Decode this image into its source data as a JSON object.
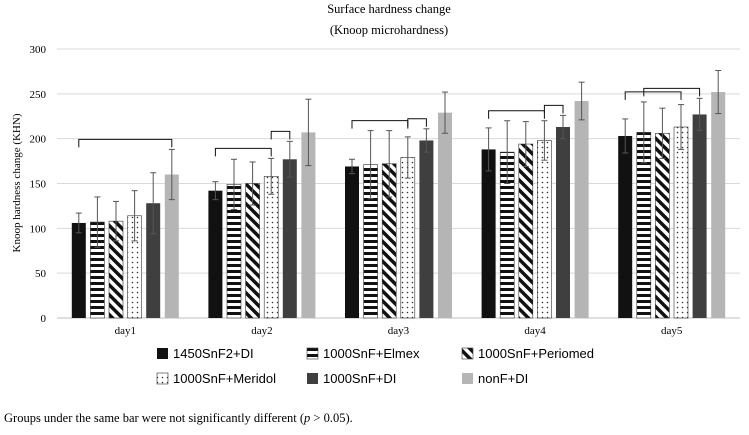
{
  "chart_data": {
    "type": "bar",
    "title": "Surface hardness change",
    "subtitle": "(Knoop microhardness)",
    "ylabel": "Knoop hardness change (KHN)",
    "xlabel": "",
    "ylim": [
      0,
      300
    ],
    "yticks": [
      0,
      50,
      100,
      150,
      200,
      250,
      300
    ],
    "grid": true,
    "legend_position": "bottom",
    "categories": [
      "day1",
      "day2",
      "day3",
      "day4",
      "day5"
    ],
    "series": [
      {
        "name": "1450SnF2+DI",
        "pattern": "solid-black",
        "values": [
          106,
          142,
          169,
          188,
          203
        ],
        "errors": [
          11,
          10,
          8,
          24,
          19
        ]
      },
      {
        "name": "1000SnF+Elmex",
        "pattern": "horizontal-stripes",
        "values": [
          107,
          149,
          171,
          185,
          207
        ],
        "errors": [
          28,
          28,
          38,
          35,
          34
        ]
      },
      {
        "name": "1000SnF+Periomed",
        "pattern": "diagonal-stripes",
        "values": [
          108,
          150,
          172,
          194,
          206
        ],
        "errors": [
          22,
          24,
          37,
          25,
          28
        ]
      },
      {
        "name": "1000SnF+Meridol",
        "pattern": "dots",
        "values": [
          114,
          158,
          179,
          198,
          213
        ],
        "errors": [
          28,
          20,
          23,
          22,
          25
        ]
      },
      {
        "name": "1000SnF+DI",
        "pattern": "solid-dark-gray",
        "values": [
          128,
          177,
          198,
          213,
          227
        ],
        "errors": [
          34,
          20,
          13,
          13,
          18
        ]
      },
      {
        "name": "nonF+DI",
        "pattern": "solid-light-gray",
        "values": [
          160,
          207,
          229,
          242,
          252
        ],
        "errors": [
          28,
          37,
          23,
          21,
          24
        ]
      }
    ],
    "significance_brackets": [
      {
        "category": "day1",
        "from_series": 0,
        "to_series": 5
      },
      {
        "category": "day2",
        "from_series": 0,
        "to_series": 3
      },
      {
        "category": "day2",
        "from_series": 3,
        "to_series": 4
      },
      {
        "category": "day3",
        "from_series": 0,
        "to_series": 3
      },
      {
        "category": "day3",
        "from_series": 3,
        "to_series": 4
      },
      {
        "category": "day4",
        "from_series": 0,
        "to_series": 3
      },
      {
        "category": "day4",
        "from_series": 3,
        "to_series": 4
      },
      {
        "category": "day5",
        "from_series": 0,
        "to_series": 3
      },
      {
        "category": "day5",
        "from_series": 1,
        "to_series": 4
      }
    ]
  },
  "footnote": {
    "text_before": "Groups under the same bar were not significantly different (",
    "p_symbol": "p",
    "text_after": " > 0.05)."
  },
  "colors": {
    "grid": "#d9d9d9",
    "solid_black": "#111111",
    "dark_gray": "#3f3f3f",
    "light_gray": "#b5b5b5",
    "error_bar": "#555555"
  }
}
